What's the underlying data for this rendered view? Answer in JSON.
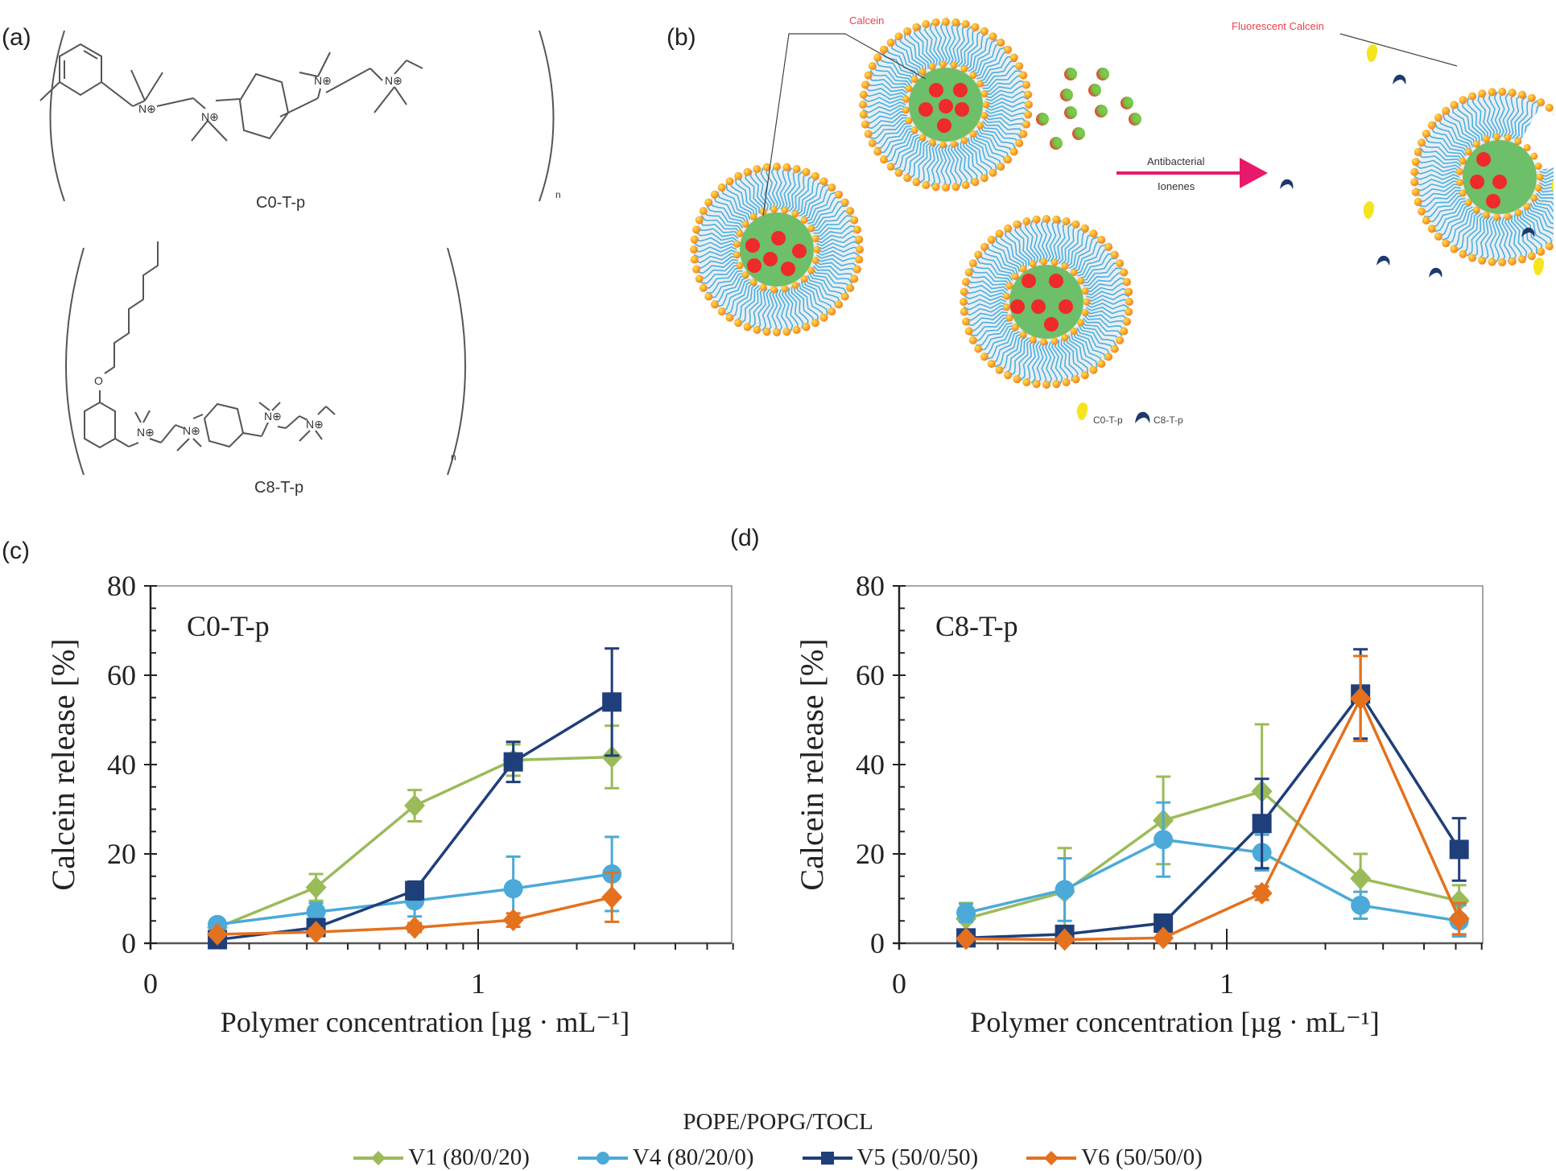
{
  "panels": {
    "a": {
      "label": "(a)",
      "structures": [
        {
          "name": "C0-T-p",
          "repeat_subscript": "n",
          "atoms": [
            "N⊕",
            "N⊕",
            "N⊕",
            "N⊕"
          ]
        },
        {
          "name": "C8-T-p",
          "repeat_subscript": "n",
          "atoms": [
            "O",
            "N⊕",
            "N⊕",
            "N⊕",
            "N⊕"
          ]
        }
      ]
    },
    "b": {
      "label": "(b)",
      "callout_calcein": "Calcein",
      "callout_fluorescent": "Fluorescent Calcein",
      "arrow_label_line1": "Antibacterial",
      "arrow_label_line2": "Ionenes",
      "legend": [
        {
          "label": "C0-T-p",
          "icon": "yellow-droplet-icon",
          "color": "#f5e51e"
        },
        {
          "label": "C8-T-p",
          "icon": "navy-crescent-icon",
          "color": "#1c3a6e"
        }
      ],
      "colors": {
        "lipid_tail": "#48b0e0",
        "head_group": "#f29c1f",
        "core": "#6dbf6a",
        "calcein": "#ee2a2a",
        "arrow": "#e8196b",
        "callout_text": "#e8414f"
      }
    }
  },
  "chart_data": [
    {
      "panel_label": "(c)",
      "type": "line",
      "title": "C0-T-p",
      "xlabel": "Polymer concentration [µg · mL⁻¹]",
      "ylabel": "Calcein release [%]",
      "xscale": "log",
      "xlim": [
        0.1,
        6
      ],
      "ylim": [
        0,
        80
      ],
      "x_tick_labels": [
        {
          "value": 0.1,
          "label": "0"
        },
        {
          "value": 1,
          "label": "1"
        }
      ],
      "y_ticks": [
        0,
        20,
        40,
        60,
        80
      ],
      "grid": false,
      "x": [
        0.16,
        0.32,
        0.64,
        1.28,
        2.56
      ],
      "series": [
        {
          "name": "V1 (80/0/20)",
          "marker": "diamond",
          "color": "#9bbb59",
          "values": [
            3.5,
            12.5,
            30.8,
            41.0,
            41.7
          ],
          "errors": [
            1.0,
            3.0,
            3.5,
            3.5,
            7.0
          ]
        },
        {
          "name": "V4 (80/20/0)",
          "marker": "circle",
          "color": "#4baad8",
          "values": [
            4.2,
            7.0,
            9.5,
            12.2,
            15.5
          ],
          "errors": [
            1.0,
            2.0,
            3.5,
            7.2,
            8.3
          ]
        },
        {
          "name": "V5 (50/0/50)",
          "marker": "square",
          "color": "#1f3f7a",
          "values": [
            0.8,
            3.5,
            11.8,
            40.6,
            54.0
          ],
          "errors": [
            0.5,
            1.0,
            2.0,
            4.5,
            12.0
          ]
        },
        {
          "name": "V6 (50/50/0)",
          "marker": "diamond",
          "color": "#e4711e",
          "values": [
            2.0,
            2.5,
            3.5,
            5.2,
            10.3
          ],
          "errors": [
            0.5,
            0.8,
            1.0,
            1.5,
            5.5
          ]
        }
      ]
    },
    {
      "panel_label": "(d)",
      "type": "line",
      "title": "C8-T-p",
      "xlabel": "Polymer concentration [µg · mL⁻¹]",
      "ylabel": "Calcein release [%]",
      "xscale": "log",
      "xlim": [
        0.1,
        6
      ],
      "ylim": [
        0,
        80
      ],
      "x_tick_labels": [
        {
          "value": 0.1,
          "label": "0"
        },
        {
          "value": 1,
          "label": "1"
        }
      ],
      "y_ticks": [
        0,
        20,
        40,
        60,
        80
      ],
      "grid": false,
      "x": [
        0.16,
        0.32,
        0.64,
        1.28,
        2.56,
        5.12
      ],
      "series": [
        {
          "name": "V1 (80/0/20)",
          "marker": "diamond",
          "color": "#9bbb59",
          "values": [
            5.5,
            11.5,
            27.5,
            34.0,
            14.5,
            9.5
          ],
          "errors": [
            3.5,
            9.8,
            9.8,
            15.0,
            5.5,
            3.5
          ]
        },
        {
          "name": "V4 (80/20/0)",
          "marker": "circle",
          "color": "#4baad8",
          "values": [
            6.8,
            12.0,
            23.2,
            20.3,
            8.5,
            5.0
          ],
          "errors": [
            2.0,
            7.0,
            8.3,
            4.0,
            3.0,
            3.5
          ]
        },
        {
          "name": "V5 (50/0/50)",
          "marker": "square",
          "color": "#1f3f7a",
          "values": [
            1.2,
            2.0,
            4.5,
            26.8,
            55.8,
            21.0
          ],
          "errors": [
            0.5,
            0.8,
            1.0,
            10.0,
            10.0,
            7.0
          ]
        },
        {
          "name": "V6 (50/50/0)",
          "marker": "diamond",
          "color": "#e4711e",
          "values": [
            1.0,
            0.8,
            1.2,
            11.2,
            54.8,
            5.5
          ],
          "errors": [
            0.5,
            0.5,
            0.8,
            1.5,
            9.5,
            3.5
          ]
        }
      ]
    }
  ],
  "legend": {
    "title": "POPE/POPG/TOCL",
    "items": [
      {
        "label": "V1 (80/0/20)",
        "marker": "diamond",
        "color": "#9bbb59"
      },
      {
        "label": "V4 (80/20/0)",
        "marker": "circle",
        "color": "#4baad8"
      },
      {
        "label": "V5 (50/0/50)",
        "marker": "square",
        "color": "#1f3f7a"
      },
      {
        "label": "V6 (50/50/0)",
        "marker": "diamond",
        "color": "#e4711e"
      }
    ]
  }
}
